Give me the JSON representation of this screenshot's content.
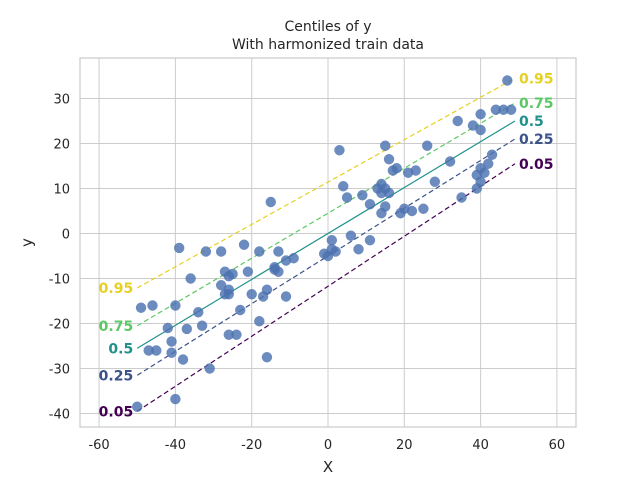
{
  "chart_data": {
    "type": "scatter",
    "title": "Centiles of y",
    "subtitle": "With harmonized train data",
    "xlabel": "X",
    "ylabel": "y",
    "xlim": [
      -65,
      65
    ],
    "ylim": [
      -43,
      39
    ],
    "xticks": [
      -60,
      -40,
      -20,
      0,
      20,
      40,
      60
    ],
    "yticks": [
      -40,
      -30,
      -20,
      -10,
      0,
      10,
      20,
      30
    ],
    "grid": true,
    "point_color": "#4c72b0",
    "points": {
      "x": [
        -50,
        -49,
        -47,
        -46,
        -45,
        -42,
        -41,
        -41,
        -40,
        -40,
        -39,
        -38,
        -37,
        -36,
        -34,
        -33,
        -32,
        -31,
        -28,
        -28,
        -27,
        -27,
        -26,
        -26,
        -26,
        -26,
        -25,
        -24,
        -23,
        -22,
        -21,
        -20,
        -18,
        -18,
        -17,
        -16,
        -16,
        -15,
        -14,
        -14,
        -13,
        -13,
        -11,
        -11,
        -9,
        -1,
        0,
        1,
        1,
        2,
        3,
        4,
        5,
        6,
        8,
        9,
        11,
        11,
        13,
        14,
        14,
        14,
        15,
        15,
        15,
        16,
        16,
        17,
        18,
        19,
        20,
        21,
        22,
        23,
        25,
        26,
        28,
        32,
        34,
        35,
        38,
        39,
        39,
        40,
        40,
        40,
        40,
        41,
        42,
        43,
        44,
        46,
        47,
        48
      ],
      "y": [
        -38.5,
        -16.5,
        -26,
        -16,
        -26,
        -21,
        -26.5,
        -24,
        -16,
        -36.8,
        -3.2,
        -28,
        -21.2,
        -10,
        -17.5,
        -20.5,
        -4,
        -30,
        -11.5,
        -4,
        -13.5,
        -8.5,
        -13.5,
        -9.5,
        -22.5,
        -12.5,
        -9,
        -22.5,
        -17,
        -2.5,
        -8.5,
        -13.5,
        -19.5,
        -4,
        -14,
        -27.5,
        -12.5,
        7,
        -8,
        -7.5,
        -8.5,
        -4,
        -6,
        -14,
        -5.5,
        -4.5,
        -5,
        -3.5,
        -1.5,
        -4,
        18.5,
        10.5,
        8,
        -0.5,
        -3.5,
        8.5,
        -1.5,
        6.5,
        10,
        9,
        11,
        4.5,
        10,
        19.5,
        6,
        16.5,
        9,
        14,
        14.5,
        4.5,
        5.5,
        13.5,
        5,
        14,
        5.5,
        19.5,
        11.5,
        16,
        25,
        8,
        24,
        10,
        13,
        11.5,
        26.5,
        14.5,
        23,
        13.5,
        15.5,
        17.5,
        27.5,
        27.5,
        34,
        27.5
      ]
    },
    "centile_x": [
      -50,
      49
    ],
    "series": [
      {
        "name": "0.95",
        "color": "#e6d021",
        "dash": "5,3",
        "y": [
          -12.1,
          34.5
        ]
      },
      {
        "name": "0.75",
        "color": "#5cc863",
        "dash": "5,3",
        "y": [
          -20.5,
          29.0
        ]
      },
      {
        "name": "0.5",
        "color": "#21918c",
        "dash": "",
        "y": [
          -25.5,
          25.0
        ]
      },
      {
        "name": "0.25",
        "color": "#3b528b",
        "dash": "5,3",
        "y": [
          -31.5,
          21.0
        ]
      },
      {
        "name": "0.05",
        "color": "#440154",
        "dash": "5,3",
        "y": [
          -39.5,
          15.5
        ]
      }
    ]
  }
}
